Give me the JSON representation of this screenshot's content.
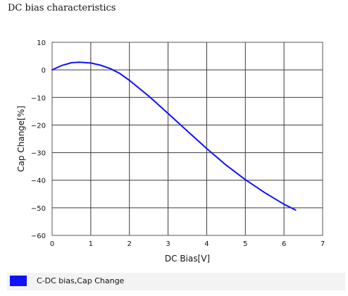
{
  "page": {
    "title": "DC bias characteristics"
  },
  "chart_data": {
    "type": "line",
    "xlabel": "DC Bias[V]",
    "ylabel": "Cap Change[%]",
    "xlim": [
      0,
      7
    ],
    "ylim": [
      -60,
      10
    ],
    "x_ticks": [
      0,
      1,
      2,
      3,
      4,
      5,
      6,
      7
    ],
    "y_ticks": [
      10,
      0,
      -10,
      -20,
      -30,
      -40,
      -50,
      -60
    ],
    "grid": true,
    "legend_position": "bottom",
    "series": [
      {
        "name": "C-DC bias,Cap Change",
        "color": "#1010ff",
        "x": [
          0,
          0.25,
          0.5,
          0.7,
          1.0,
          1.25,
          1.5,
          1.75,
          2.0,
          2.5,
          3.0,
          3.5,
          4.0,
          4.5,
          5.0,
          5.5,
          6.0,
          6.3
        ],
        "y": [
          0,
          1.6,
          2.6,
          2.8,
          2.5,
          1.7,
          0.5,
          -1.3,
          -3.8,
          -9.5,
          -15.8,
          -22.2,
          -28.5,
          -34.5,
          -39.8,
          -44.5,
          -48.7,
          -50.8
        ]
      }
    ]
  }
}
